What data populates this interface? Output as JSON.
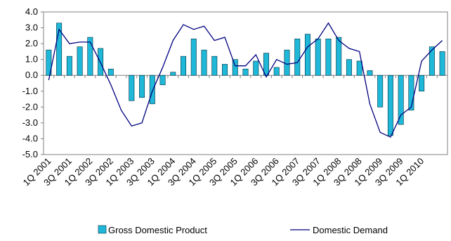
{
  "chart_data": {
    "type": "bar-line",
    "categories": [
      "1Q 2001",
      null,
      "3Q 2001",
      null,
      "1Q 2002",
      null,
      "3Q 2002",
      null,
      "1Q 2003",
      null,
      "3Q 2003",
      null,
      "1Q 2004",
      null,
      "3Q 2004",
      null,
      "1Q 2005",
      null,
      "3Q 2005",
      null,
      "1Q 2006",
      null,
      "3Q 2006",
      null,
      "1Q 2007",
      null,
      "3Q 2007",
      null,
      "1Q 2008",
      null,
      "3Q 2008",
      null,
      "1Q 2009",
      null,
      "3Q 2009",
      null,
      "1Q 2010",
      null,
      null
    ],
    "series": [
      {
        "name": "Gross Domestic Product",
        "type": "bar",
        "color": "#1fb8d8",
        "values": [
          1.6,
          3.3,
          1.2,
          1.8,
          2.4,
          1.7,
          0.4,
          0.0,
          -1.6,
          -1.4,
          -1.8,
          -0.6,
          0.2,
          1.2,
          2.3,
          1.6,
          1.2,
          0.7,
          1.0,
          0.4,
          0.9,
          1.4,
          0.5,
          1.6,
          2.3,
          2.6,
          2.3,
          2.3,
          2.4,
          1.0,
          0.9,
          0.3,
          -2.0,
          -3.8,
          -3.1,
          -2.2,
          -1.0,
          1.8,
          1.5
        ]
      },
      {
        "name": "Domestic Demand",
        "type": "line",
        "color": "#000080",
        "values": [
          -0.3,
          2.9,
          2.0,
          2.1,
          2.1,
          0.8,
          -0.6,
          -2.2,
          -3.2,
          -3.0,
          -1.0,
          0.5,
          2.2,
          3.2,
          2.9,
          3.1,
          2.2,
          2.4,
          0.6,
          0.6,
          1.3,
          -0.1,
          1.0,
          0.7,
          0.8,
          1.8,
          2.3,
          3.3,
          2.2,
          1.7,
          1.5,
          -1.8,
          -3.6,
          -3.9,
          -2.5,
          -2.0,
          0.9,
          1.6,
          2.2
        ]
      }
    ],
    "ylim": [
      -5,
      4
    ],
    "yticks": [
      {
        "value": -5,
        "label": "-5.0"
      },
      {
        "value": -4,
        "label": "-4.0"
      },
      {
        "value": -3,
        "label": "-3.0"
      },
      {
        "value": -2,
        "label": "-2.0"
      },
      {
        "value": -1,
        "label": "-1.0"
      },
      {
        "value": 0,
        "label": "0.0"
      },
      {
        "value": 1,
        "label": "1.0"
      },
      {
        "value": 2,
        "label": "2.0"
      },
      {
        "value": 3,
        "label": "3.0"
      },
      {
        "value": 4,
        "label": "4.0"
      }
    ],
    "legend": "bottom"
  }
}
